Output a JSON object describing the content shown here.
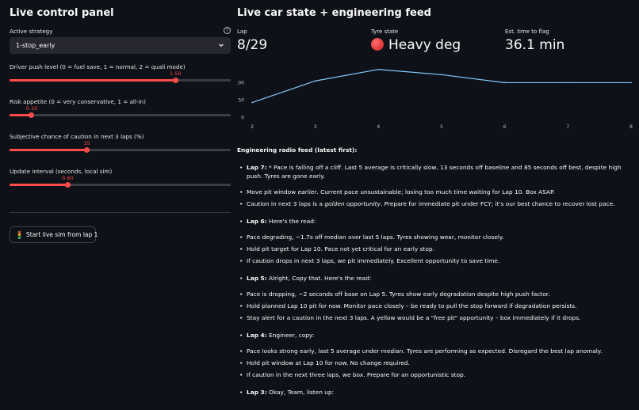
{
  "left": {
    "title": "Live control panel",
    "strategy": {
      "label": "Active strategy",
      "help_icon": "question-icon",
      "value": "1-stop_early"
    },
    "sliders": [
      {
        "label": "Driver push level (0 = fuel save, 1 = normal, 2 = quali mode)",
        "value_label": "1.50",
        "value": 1.5,
        "min": 0,
        "max": 2
      },
      {
        "label": "Risk appetite (0 = very conservative, 1 = all-in)",
        "value_label": "0.10",
        "value": 0.1,
        "min": 0,
        "max": 1
      },
      {
        "label": "Subjective chance of caution in next 3 laps (%)",
        "value_label": "35",
        "value": 35,
        "min": 0,
        "max": 100
      },
      {
        "label": "Update interval (seconds, local sim)",
        "value_label": "0.60",
        "value": 0.6,
        "min": 0.1,
        "max": 2.0
      }
    ],
    "start_button": {
      "label": "Start live sim from lap 1",
      "icon": "traffic-light-icon"
    }
  },
  "right": {
    "title": "Live car state + engineering feed",
    "metrics": [
      {
        "label": "Lap",
        "value": "8/29"
      },
      {
        "label": "Tyre state",
        "value": "Heavy deg",
        "icon": "red-circle-icon"
      },
      {
        "label": "Est. time to flag",
        "value": "36.1 min"
      }
    ],
    "chart_data": {
      "type": "line",
      "x": [
        2,
        3,
        4,
        5,
        6,
        7,
        8
      ],
      "series": [
        {
          "values": [
            42,
            104,
            137,
            122,
            99,
            99,
            99
          ]
        }
      ],
      "xticks": [
        "2",
        "3",
        "4",
        "5",
        "6",
        "7",
        "8"
      ],
      "yticks": [
        "0",
        "50",
        "100"
      ],
      "xlim": [
        2,
        8
      ],
      "ylim": [
        0,
        150
      ],
      "grid": false,
      "line_color": "#83c9ff"
    },
    "feed": {
      "heading": "Engineering radio feed (latest first):",
      "laps": [
        {
          "lap": "Lap 7:",
          "intro": "* Pace is falling off a cliff. Last 5 average is critically slow, 13 seconds off baseline and 85 seconds off best, despite high push. Tyres are gone early.",
          "items": [
            {
              "a": "Move pit window ",
              "em": "earlier",
              "b": ". Current pace unsustainable; losing too much time waiting for Lap 10. Box ASAP."
            },
            {
              "a": "Caution in next 3 laps is a ",
              "em": "golden opportunity",
              "b": ". Prepare for immediate pit under FCY; it's our best chance to recover lost pace."
            }
          ]
        },
        {
          "lap": "Lap 6:",
          "intro": "Here's the read:",
          "items": [
            {
              "a": "Pace degrading, ~1.7s off median over last 5 laps. Tyres showing wear, monitor closely."
            },
            {
              "a": "Hold pit target for Lap 10. Pace not yet critical for an early stop."
            },
            {
              "a": "If caution drops in next 3 laps, we pit immediately. Excellent opportunity to save time."
            }
          ]
        },
        {
          "lap": "Lap 5:",
          "intro": "Alright, Copy that. Here's the read:",
          "items": [
            {
              "a": "Pace is dropping, ~2 seconds off base on Lap 5. Tyres show early degradation despite high push factor."
            },
            {
              "a": "Hold planned Lap 10 pit for now. Monitor pace closely – be ready to pull the stop forward if degradation persists."
            },
            {
              "a": "Stay alert for a caution in the next 3 laps. A yellow would be a \"free pit\" opportunity – box immediately if it drops."
            }
          ]
        },
        {
          "lap": "Lap 4:",
          "intro": "Engineer, copy:",
          "items": [
            {
              "a": "Pace looks strong early, last 5 average under median. Tyres are performing as expected. Disregard the best lap anomaly."
            },
            {
              "a": "Hold pit window at Lap 10 for now. No change required."
            },
            {
              "a": "If caution in the next three laps, we box. Prepare for an opportunistic stop."
            }
          ]
        },
        {
          "lap": "Lap 3:",
          "intro": "Okay, Team, listen up:",
          "items": []
        }
      ]
    }
  },
  "colors": {
    "accent": "#ff4b4b",
    "background": "#0e1117",
    "chart_line": "#83c9ff"
  }
}
